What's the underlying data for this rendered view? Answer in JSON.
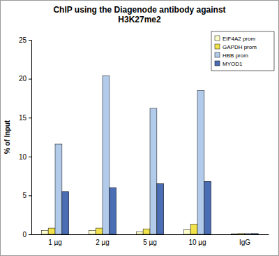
{
  "chart_data": {
    "type": "bar",
    "title": "ChIP using the Diagenode antibody against H3K27me2",
    "y_label": "% of Input",
    "categories": [
      "1 µg",
      "2 µg",
      "5 µg",
      "10 µg",
      "IgG"
    ],
    "series": [
      {
        "name": "EIF4A2 prom",
        "color": "#ffffcc",
        "values": [
          0.5,
          0.5,
          0.3,
          0.6,
          0.05
        ]
      },
      {
        "name": "GAPDH prom",
        "color": "#f2e34a",
        "values": [
          0.8,
          0.8,
          0.7,
          1.3,
          0.1
        ]
      },
      {
        "name": "HBB prom",
        "color": "#b3cbea",
        "values": [
          11.6,
          20.4,
          16.2,
          18.5,
          0.1
        ]
      },
      {
        "name": "MYOD1",
        "color": "#4a6db3",
        "values": [
          5.5,
          6.0,
          6.5,
          6.8,
          0.1
        ]
      }
    ],
    "ylim": [
      0,
      25
    ],
    "yticks": [
      0,
      5,
      10,
      15,
      20,
      25
    ],
    "grid": false,
    "legend": "upper right"
  }
}
